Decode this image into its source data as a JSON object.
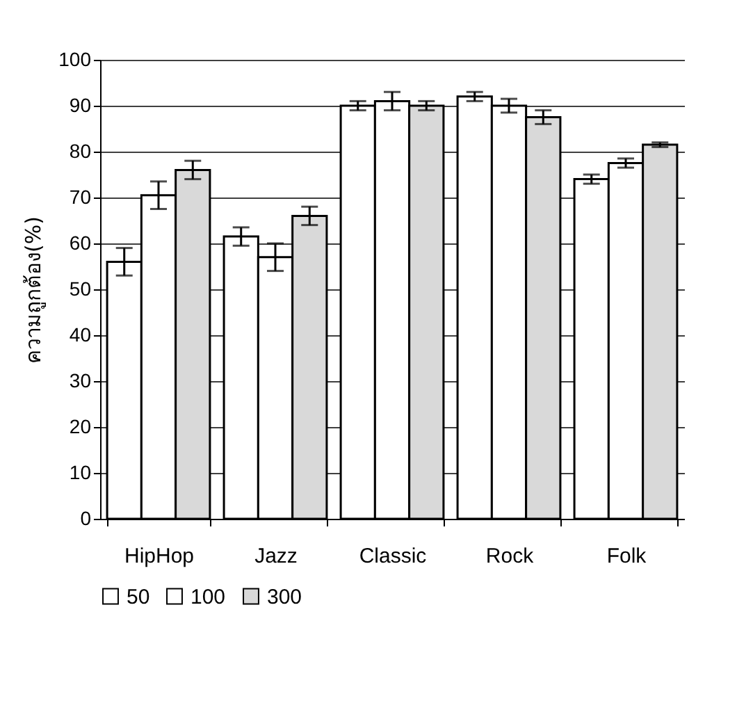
{
  "chart_data": {
    "type": "bar",
    "ylabel": "ความถูกต้อง(%)",
    "categories": [
      "HipHop",
      "Jazz",
      "Classic",
      "Rock",
      "Folk"
    ],
    "series": [
      {
        "name": "50",
        "color": "#ffffff",
        "values": [
          56,
          61.5,
          90,
          92,
          74
        ],
        "errors": [
          3,
          2,
          1,
          1,
          1
        ]
      },
      {
        "name": "100",
        "color": "#ffffff",
        "values": [
          70.5,
          57,
          91,
          90,
          77.5
        ],
        "errors": [
          3,
          3,
          2,
          1.5,
          1
        ]
      },
      {
        "name": "300",
        "color": "#d9d9d9",
        "values": [
          76,
          66,
          90,
          87.5,
          81.5
        ],
        "errors": [
          2,
          2,
          1,
          1.5,
          0.5
        ]
      }
    ],
    "ylim": [
      0,
      100
    ],
    "yticks": [
      0,
      10,
      20,
      30,
      40,
      50,
      60,
      70,
      80,
      90,
      100
    ],
    "grid": "y",
    "legend": "bottom left"
  }
}
